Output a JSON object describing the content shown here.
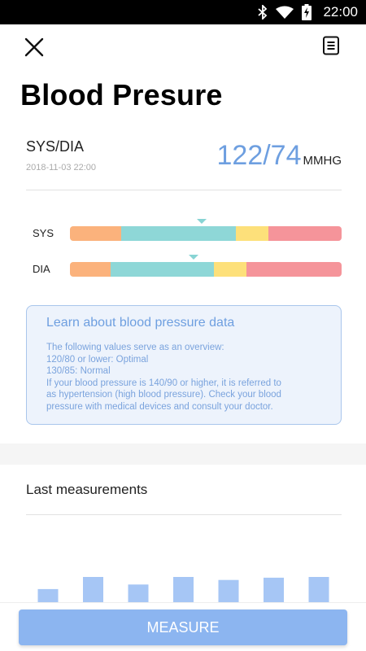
{
  "status_bar": {
    "time": "22:00",
    "icons": [
      "bluetooth-icon",
      "wifi-icon",
      "battery-charging-icon"
    ]
  },
  "header": {
    "close_icon": "close-icon",
    "history_icon": "document-list-icon"
  },
  "page_title": "Blood Presure",
  "reading": {
    "label": "SYS/DIA",
    "timestamp": "2018-11-03 22:00",
    "value": "122/74",
    "unit": "MMHG"
  },
  "scales": [
    {
      "label": "SYS",
      "segments": [
        {
          "fraction": 0.19,
          "color": "#fbb27c"
        },
        {
          "fraction": 0.42,
          "color": "#8ed7d7"
        },
        {
          "fraction": 0.12,
          "color": "#fde07a"
        },
        {
          "fraction": 0.27,
          "color": "#f5949a"
        }
      ],
      "marker_fraction": 0.485
    },
    {
      "label": "DIA",
      "segments": [
        {
          "fraction": 0.15,
          "color": "#fbb27c"
        },
        {
          "fraction": 0.38,
          "color": "#8ed7d7"
        },
        {
          "fraction": 0.12,
          "color": "#fde07a"
        },
        {
          "fraction": 0.35,
          "color": "#f5949a"
        }
      ],
      "marker_fraction": 0.455
    }
  ],
  "info": {
    "title": "Learn about blood pressure data",
    "lines": [
      "The following values serve as an overview:",
      "120/80 or lower: Optimal",
      "130/85: Normal",
      "If your blood pressure is 140/90 or higher, it is referred to",
      "as hypertension (high blood pressure). Check your blood",
      "pressure with medical devices and consult your doctor."
    ]
  },
  "last_measurements": {
    "title": "Last measurements",
    "bar_color": "#a6c6f5",
    "bars": [
      0.52,
      1.0,
      0.7,
      1.0,
      0.88,
      0.97,
      1.0
    ]
  },
  "measure_button": "MEASURE",
  "colors": {
    "accent": "#6e9fe0",
    "button": "#8cb5f0"
  }
}
